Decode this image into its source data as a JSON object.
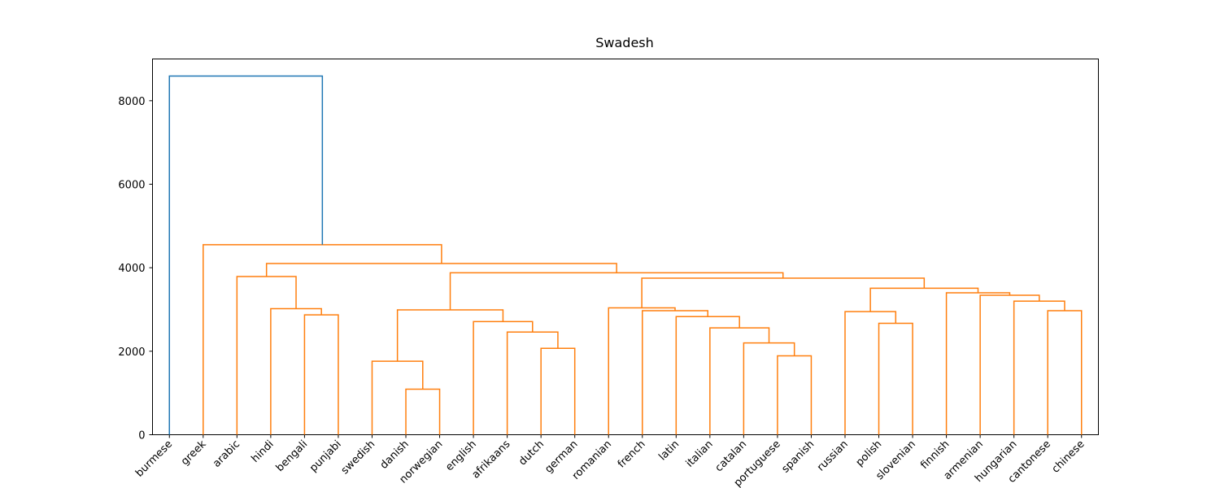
{
  "chart_data": {
    "type": "dendrogram",
    "title": "Swadesh",
    "leaves": [
      "burmese",
      "greek",
      "arabic",
      "hindi",
      "bengali",
      "punjabi",
      "swedish",
      "danish",
      "norwegian",
      "english",
      "afrikaans",
      "dutch",
      "german",
      "romanian",
      "french",
      "latin",
      "italian",
      "catalan",
      "portuguese",
      "spanish",
      "russian",
      "polish",
      "slovenian",
      "finnish",
      "armenian",
      "hungarian",
      "cantonese",
      "chinese"
    ],
    "links": [
      {
        "children": [
          7,
          8
        ],
        "height": 1090,
        "color": "#ff7f0e"
      },
      {
        "children": [
          6,
          28
        ],
        "height": 1760,
        "color": "#ff7f0e"
      },
      {
        "children": [
          11,
          12
        ],
        "height": 2070,
        "color": "#ff7f0e"
      },
      {
        "children": [
          10,
          30
        ],
        "height": 2460,
        "color": "#ff7f0e"
      },
      {
        "children": [
          9,
          31
        ],
        "height": 2710,
        "color": "#ff7f0e"
      },
      {
        "children": [
          29,
          32
        ],
        "height": 2990,
        "color": "#ff7f0e"
      },
      {
        "children": [
          18,
          19
        ],
        "height": 1890,
        "color": "#ff7f0e"
      },
      {
        "children": [
          17,
          34
        ],
        "height": 2200,
        "color": "#ff7f0e"
      },
      {
        "children": [
          16,
          35
        ],
        "height": 2560,
        "color": "#ff7f0e"
      },
      {
        "children": [
          15,
          36
        ],
        "height": 2830,
        "color": "#ff7f0e"
      },
      {
        "children": [
          14,
          37
        ],
        "height": 2970,
        "color": "#ff7f0e"
      },
      {
        "children": [
          13,
          38
        ],
        "height": 3040,
        "color": "#ff7f0e"
      },
      {
        "children": [
          4,
          5
        ],
        "height": 2870,
        "color": "#ff7f0e"
      },
      {
        "children": [
          3,
          40
        ],
        "height": 3020,
        "color": "#ff7f0e"
      },
      {
        "children": [
          2,
          41
        ],
        "height": 3790,
        "color": "#ff7f0e"
      },
      {
        "children": [
          21,
          22
        ],
        "height": 2670,
        "color": "#ff7f0e"
      },
      {
        "children": [
          20,
          43
        ],
        "height": 2950,
        "color": "#ff7f0e"
      },
      {
        "children": [
          26,
          27
        ],
        "height": 2970,
        "color": "#ff7f0e"
      },
      {
        "children": [
          25,
          45
        ],
        "height": 3200,
        "color": "#ff7f0e"
      },
      {
        "children": [
          24,
          46
        ],
        "height": 3340,
        "color": "#ff7f0e"
      },
      {
        "children": [
          23,
          47
        ],
        "height": 3400,
        "color": "#ff7f0e"
      },
      {
        "children": [
          44,
          48
        ],
        "height": 3510,
        "color": "#ff7f0e"
      },
      {
        "children": [
          39,
          49
        ],
        "height": 3750,
        "color": "#ff7f0e"
      },
      {
        "children": [
          33,
          50
        ],
        "height": 3880,
        "color": "#ff7f0e"
      },
      {
        "children": [
          42,
          51
        ],
        "height": 4100,
        "color": "#ff7f0e"
      },
      {
        "children": [
          1,
          52
        ],
        "height": 4550,
        "color": "#ff7f0e"
      },
      {
        "children": [
          0,
          53
        ],
        "height": 8590,
        "color": "#1f77b4"
      }
    ],
    "ylim": [
      0,
      9000
    ],
    "yticks": [
      0,
      2000,
      4000,
      6000,
      8000
    ]
  }
}
